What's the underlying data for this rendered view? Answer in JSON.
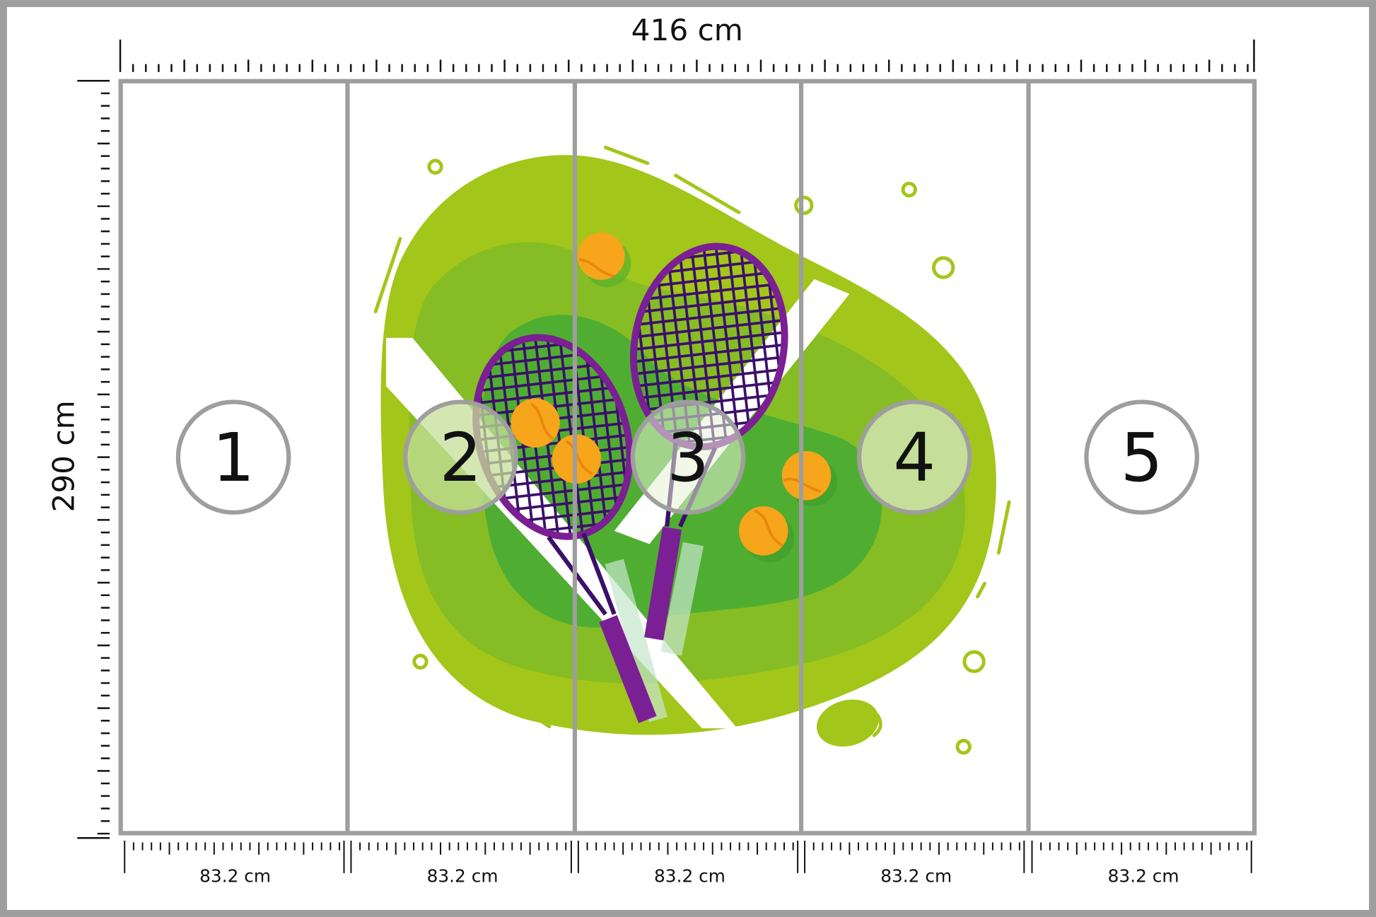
{
  "dimensions": {
    "width_label": "416 cm",
    "height_label": "290 cm",
    "panel_width_label": "83.2 cm"
  },
  "panels": [
    {
      "number": "1",
      "width_label": "83.2 cm"
    },
    {
      "number": "2",
      "width_label": "83.2 cm"
    },
    {
      "number": "3",
      "width_label": "83.2 cm"
    },
    {
      "number": "4",
      "width_label": "83.2 cm"
    },
    {
      "number": "5",
      "width_label": "83.2 cm"
    }
  ],
  "artwork": {
    "subject": "tennis rackets and balls on green court blob",
    "colors": {
      "frame": "#9e9e9e",
      "lime": "#a3c61a",
      "mid_green": "#86bd24",
      "dark_green": "#4fae32",
      "purple": "#7b1f94",
      "dark_purple": "#3b1069",
      "ball": "#f7a51b",
      "ball_shade": "#e8870e",
      "circle_fill": "#c5df9a"
    }
  }
}
